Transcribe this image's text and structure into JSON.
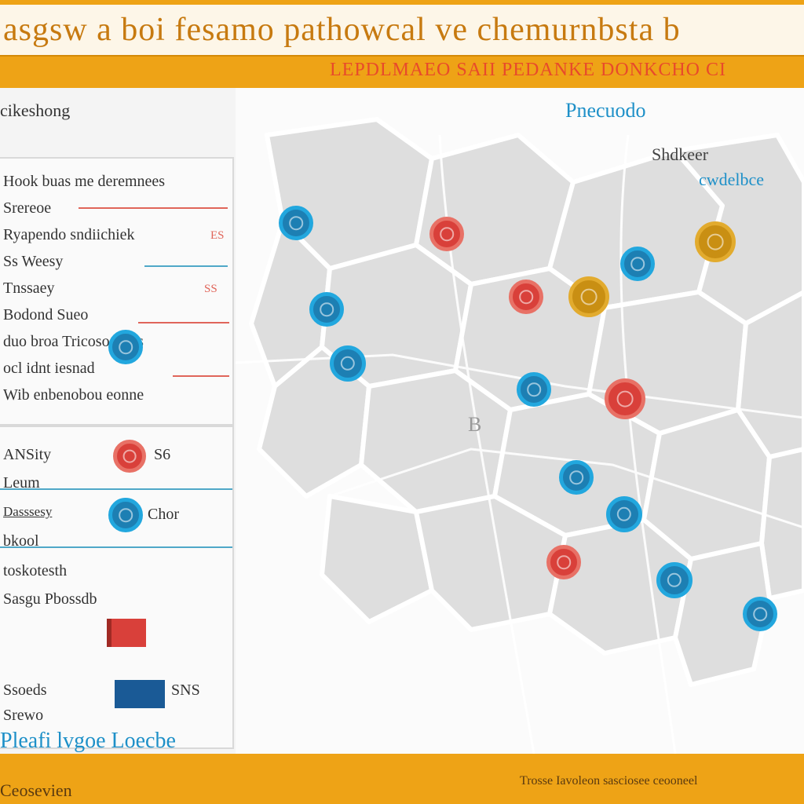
{
  "header": {
    "title": "asgsw a boi fesamo pathowcal ve chemurnbsta b",
    "subtitle": "LEPDLMAEO SAII PEDANKE DONKCHO CI"
  },
  "sidebar": {
    "heading": "cikeshong",
    "list": [
      {
        "label": "Hook buas me deremnees",
        "line": "red"
      },
      {
        "label": "Srereoe",
        "line": "red"
      },
      {
        "label": "Ryapendo sndiichiek",
        "line": "red",
        "tag": "ES"
      },
      {
        "label": "Ss Weesy",
        "line": "blue"
      },
      {
        "label": "Tnssaey",
        "line": "none",
        "tag": "SS"
      },
      {
        "label": "Bodond Sueo",
        "line": "red"
      },
      {
        "label": "duo broa Tricosoo (a s",
        "line": "none"
      },
      {
        "label": "ocl idnt iesnad",
        "line": "red"
      },
      {
        "label": "Wib enbenobou eonne",
        "line": "none"
      }
    ],
    "legend": [
      {
        "label": "ANSity",
        "value": "S6",
        "color": "#d9403a"
      },
      {
        "label": "Leum",
        "value": "",
        "color": ""
      },
      {
        "label": "Dasssesy",
        "value": "Chor",
        "color": "#1d7fb3"
      },
      {
        "label": "bkool",
        "value": "",
        "color": ""
      },
      {
        "label": "toskotesth",
        "value": "",
        "color": ""
      },
      {
        "label": "Sasgu Pbossdb",
        "value": "",
        "color": ""
      }
    ],
    "swatch_label": "SNS",
    "bottom_rows": [
      "Ssoeds",
      "Srewo"
    ],
    "footer": "Pleafi lvgoe Loecbe"
  },
  "map": {
    "labels": [
      {
        "text": "Pnecuodo",
        "color": "#1e90c8"
      },
      {
        "text": "Shdkeer",
        "color": "#444"
      },
      {
        "text": "cwdelbce",
        "color": "#1e90c8"
      },
      {
        "text": "B",
        "color": "#999"
      }
    ],
    "markers": [
      {
        "color": "blue"
      },
      {
        "color": "red"
      },
      {
        "color": "gold"
      },
      {
        "color": "blue"
      },
      {
        "color": "red"
      },
      {
        "color": "gold"
      },
      {
        "color": "blue"
      },
      {
        "color": "blue"
      },
      {
        "color": "blue"
      },
      {
        "color": "red"
      },
      {
        "color": "blue"
      },
      {
        "color": "blue"
      },
      {
        "color": "red"
      },
      {
        "color": "blue"
      },
      {
        "color": "blue"
      }
    ]
  },
  "bottom": {
    "left": "Ceosevien",
    "right": "Trosse Iavoleon sasciosee ceooneel"
  },
  "colors": {
    "accent": "#eea316",
    "marker_blue": "#1d7fb3",
    "marker_red": "#d9403a",
    "marker_gold": "#c98f13"
  }
}
